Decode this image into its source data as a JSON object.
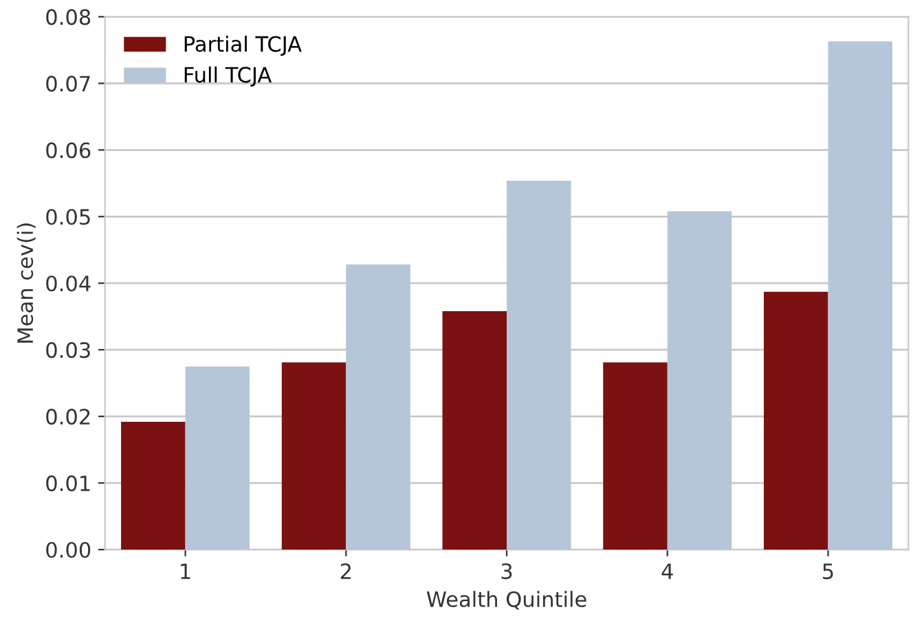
{
  "chart_data": {
    "type": "bar",
    "xlabel": "Wealth Quintile",
    "ylabel": "Mean cev(i)",
    "categories": [
      "1",
      "2",
      "3",
      "4",
      "5"
    ],
    "series": [
      {
        "name": "Partial TCJA",
        "color": "#7b1111",
        "values": [
          0.0192,
          0.0281,
          0.0358,
          0.0281,
          0.0387
        ]
      },
      {
        "name": "Full TCJA",
        "color": "#b6c6d9",
        "values": [
          0.0275,
          0.0428,
          0.0554,
          0.0508,
          0.0763
        ]
      }
    ],
    "ylim": [
      0,
      0.08
    ],
    "yticks": [
      {
        "value": 0,
        "label": "0.00"
      },
      {
        "value": 0.01,
        "label": "0.01"
      },
      {
        "value": 0.02,
        "label": "0.02"
      },
      {
        "value": 0.03,
        "label": "0.03"
      },
      {
        "value": 0.04,
        "label": "0.04"
      },
      {
        "value": 0.05,
        "label": "0.05"
      },
      {
        "value": 0.06,
        "label": "0.06"
      },
      {
        "value": 0.07,
        "label": "0.07"
      },
      {
        "value": 0.08,
        "label": "0.08"
      }
    ],
    "grid": "y",
    "legend": "top left"
  }
}
